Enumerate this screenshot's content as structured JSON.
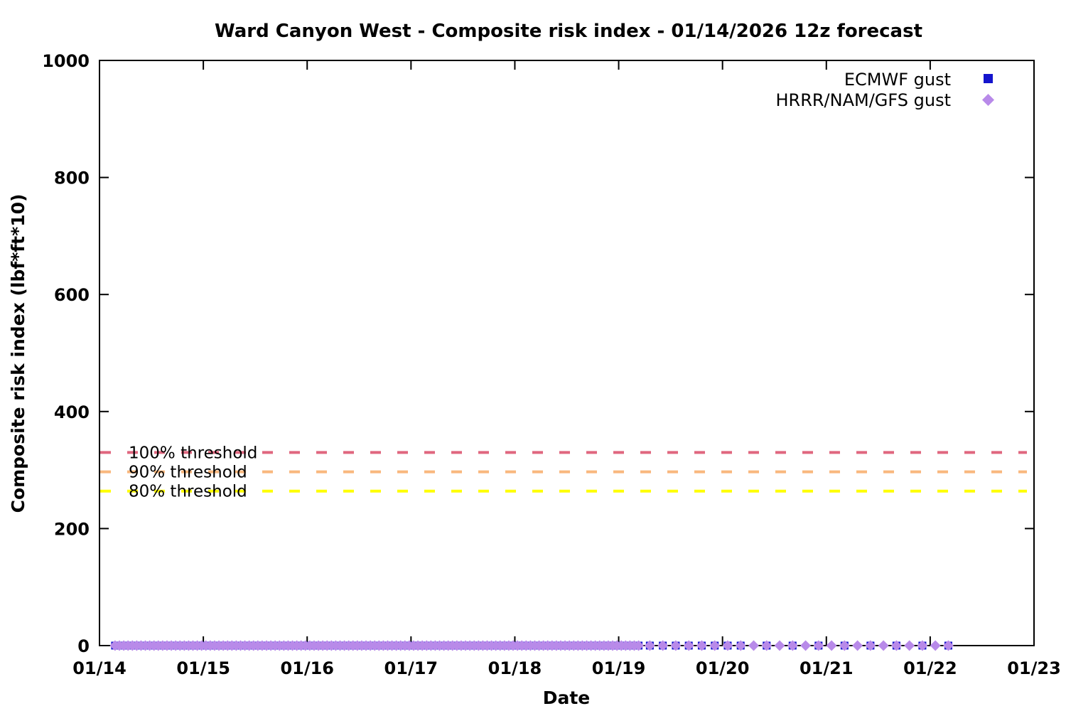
{
  "page": {
    "background": "#ffffff",
    "border_color": "#000000"
  },
  "chart_data": {
    "type": "scatter",
    "title": "Ward Canyon West - Composite risk index - 01/14/2026 12z forecast",
    "xlabel": "Date",
    "ylabel": "Composite risk index (lbf*ft*10)",
    "grid": false,
    "legend_position": "top-right-inside",
    "x_axis": {
      "tick_labels": [
        "01/14",
        "01/15",
        "01/16",
        "01/17",
        "01/18",
        "01/19",
        "01/20",
        "01/21",
        "01/22",
        "01/23"
      ],
      "start_day": 14,
      "end_day": 23,
      "unit": "date (Jan 2026)"
    },
    "y_axis": {
      "min": 0,
      "max": 1000,
      "ticks": [
        0,
        200,
        400,
        600,
        800,
        1000
      ]
    },
    "thresholds": [
      {
        "label": "100% threshold",
        "value": 330,
        "color": "#e0677f"
      },
      {
        "label": "90% threshold",
        "value": 297,
        "color": "#f9b87e"
      },
      {
        "label": "80% threshold",
        "value": 264,
        "color": "#ffff00"
      }
    ],
    "series": [
      {
        "name": "ECMWF gust",
        "marker": "square",
        "color": "#1414cd",
        "y_value": 0,
        "t_segments": [
          {
            "from": 14.15,
            "to": 19.192,
            "step_hours": 1
          },
          {
            "from": 19.3,
            "to": 20.18,
            "step_hours": 3
          },
          {
            "from": 20.425,
            "to": 22.18,
            "step_hours": 6
          }
        ]
      },
      {
        "name": "HRRR/NAM/GFS gust",
        "marker": "diamond",
        "color": "#b88ae9",
        "y_value": 0,
        "t_segments": [
          {
            "from": 14.15,
            "to": 19.192,
            "step_hours": 1
          },
          {
            "from": 19.3,
            "to": 20.18,
            "step_hours": 3
          },
          {
            "from": 20.3,
            "to": 22.18,
            "step_hours": 3
          }
        ]
      }
    ],
    "dash_pattern": "15 23"
  }
}
